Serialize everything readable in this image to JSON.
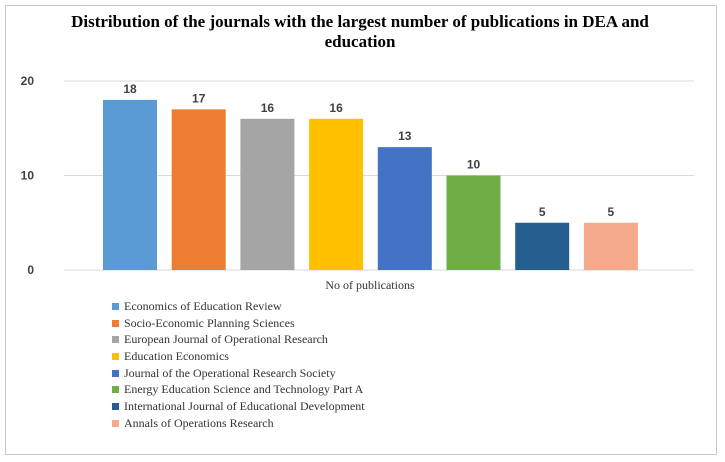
{
  "chart_data": {
    "type": "bar",
    "title": "Distribution of the journals with the largest number of publications in DEA and education",
    "xlabel": "No of publications",
    "ylabel": "",
    "ylim": [
      0,
      20
    ],
    "yticks": [
      0,
      10,
      20
    ],
    "grid": true,
    "legend_position": "bottom-left",
    "series": [
      {
        "name": "Economics of Education Review",
        "value": 18,
        "color": "#5B9BD5"
      },
      {
        "name": "Socio-Economic Planning Sciences",
        "value": 17,
        "color": "#ED7D31"
      },
      {
        "name": "European Journal of Operational Research",
        "value": 16,
        "color": "#A5A5A5"
      },
      {
        "name": "Education Economics",
        "value": 16,
        "color": "#FFC000"
      },
      {
        "name": "Journal of the Operational Research Society",
        "value": 13,
        "color": "#4472C4"
      },
      {
        "name": "Energy Education Science and Technology Part A",
        "value": 10,
        "color": "#70AD47"
      },
      {
        "name": "International Journal of Educational Development",
        "value": 5,
        "color": "#255E91"
      },
      {
        "name": "Annals of Operations Research",
        "value": 5,
        "color": "#F4A98B"
      }
    ]
  }
}
